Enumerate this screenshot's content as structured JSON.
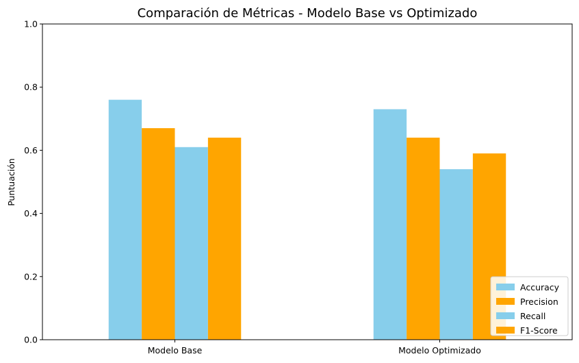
{
  "chart_data": {
    "type": "bar",
    "title": "Comparación de Métricas - Modelo Base vs Optimizado",
    "xlabel": "",
    "ylabel": "Puntuación",
    "ylim": [
      0,
      1.0
    ],
    "yticks": [
      0.0,
      0.2,
      0.4,
      0.6,
      0.8,
      1.0
    ],
    "ytick_labels": [
      "0.0",
      "0.2",
      "0.4",
      "0.6",
      "0.8",
      "1.0"
    ],
    "categories": [
      "Modelo Base",
      "Modelo Optimizado"
    ],
    "series": [
      {
        "name": "Accuracy",
        "color": "#87CEEB",
        "values": [
          0.76,
          0.73
        ]
      },
      {
        "name": "Precision",
        "color": "#FFA500",
        "values": [
          0.67,
          0.64
        ]
      },
      {
        "name": "Recall",
        "color": "#87CEEB",
        "values": [
          0.61,
          0.54
        ]
      },
      {
        "name": "F1-Score",
        "color": "#FFA500",
        "values": [
          0.64,
          0.59
        ]
      }
    ],
    "grid": false,
    "legend_position": "lower-right"
  }
}
